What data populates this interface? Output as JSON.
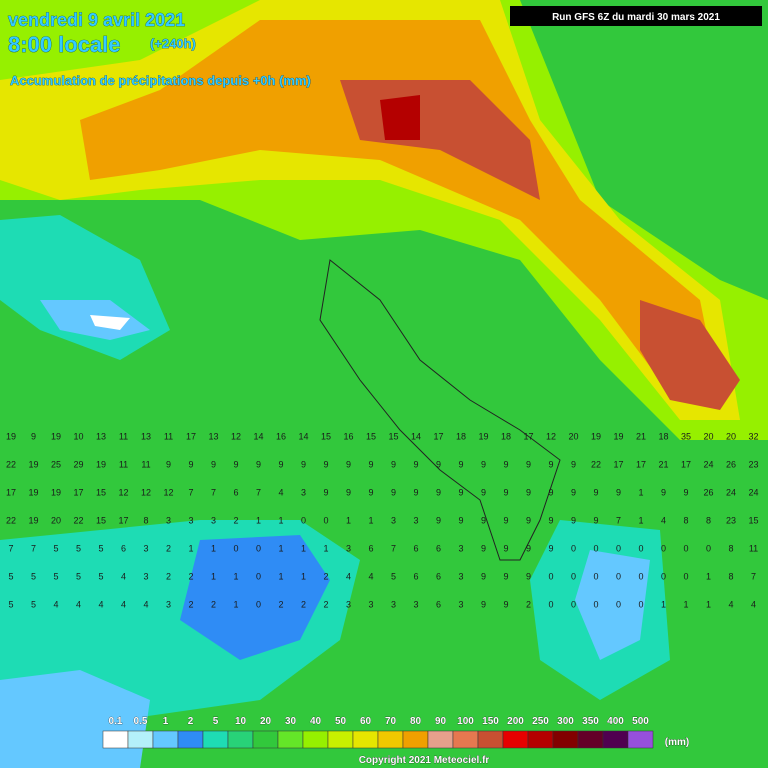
{
  "header": {
    "date": "vendredi 9 avril 2021",
    "time": "8:00 locale",
    "lead": "(+240h)",
    "subtitle": "Accumulation de précipitations depuis +0h (mm)",
    "run": "Run GFS 6Z du mardi 30 mars 2021"
  },
  "grid_values": [
    [
      19,
      9,
      19,
      10,
      13,
      11,
      13,
      11,
      17,
      13,
      12,
      14,
      16,
      14,
      15,
      16,
      15,
      15,
      14,
      17,
      18,
      19,
      18,
      17,
      12,
      20,
      19,
      19,
      21,
      18,
      35,
      20,
      20,
      32
    ],
    [
      22,
      19,
      25,
      29,
      19,
      11,
      11,
      9,
      9,
      9,
      9,
      9,
      9,
      9,
      9,
      9,
      9,
      9,
      9,
      9,
      9,
      9,
      9,
      9,
      9,
      9,
      22,
      17,
      17,
      21,
      17,
      24,
      26,
      23
    ],
    [
      17,
      19,
      19,
      17,
      15,
      12,
      12,
      12,
      7,
      7,
      6,
      7,
      4,
      3,
      9,
      9,
      9,
      9,
      9,
      9,
      9,
      9,
      9,
      9,
      9,
      9,
      9,
      9,
      1,
      9,
      9,
      26,
      24,
      24
    ],
    [
      22,
      19,
      20,
      22,
      15,
      17,
      8,
      3,
      3,
      3,
      2,
      1,
      1,
      0,
      0,
      1,
      1,
      3,
      3,
      9,
      9,
      9,
      9,
      9,
      9,
      9,
      9,
      7,
      1,
      4,
      8,
      8,
      23,
      15
    ],
    [
      7,
      7,
      5,
      5,
      5,
      6,
      3,
      2,
      1,
      1,
      0,
      0,
      1,
      1,
      1,
      3,
      6,
      7,
      6,
      6,
      3,
      9,
      9,
      9,
      9,
      0,
      0,
      0,
      0,
      0,
      0,
      0,
      8,
      11
    ],
    [
      5,
      5,
      5,
      5,
      5,
      4,
      3,
      2,
      2,
      1,
      1,
      0,
      1,
      1,
      2,
      4,
      4,
      5,
      6,
      6,
      3,
      9,
      9,
      9,
      0,
      0,
      0,
      0,
      0,
      0,
      0,
      1,
      8,
      7
    ],
    [
      5,
      5,
      4,
      4,
      4,
      4,
      4,
      3,
      2,
      2,
      1,
      0,
      2,
      2,
      2,
      3,
      3,
      3,
      3,
      6,
      3,
      9,
      9,
      2,
      0,
      0,
      0,
      0,
      0,
      1,
      1,
      1,
      4,
      4
    ]
  ],
  "legend": {
    "unit": "(mm)",
    "scale": [
      {
        "value": 0.1,
        "color": "#ffffff"
      },
      {
        "value": 0.5,
        "color": "#b4f0fa"
      },
      {
        "value": 1,
        "color": "#64c8ff"
      },
      {
        "value": 2,
        "color": "#2f8cf5"
      },
      {
        "value": 5,
        "color": "#1edcb4"
      },
      {
        "value": 10,
        "color": "#28d278"
      },
      {
        "value": 20,
        "color": "#32c83c"
      },
      {
        "value": 30,
        "color": "#64e628"
      },
      {
        "value": 40,
        "color": "#96f000"
      },
      {
        "value": 50,
        "color": "#c8f000"
      },
      {
        "value": 60,
        "color": "#e6e600"
      },
      {
        "value": 70,
        "color": "#f0c800"
      },
      {
        "value": 80,
        "color": "#f0a000"
      },
      {
        "value": 90,
        "color": "#e6a08c"
      },
      {
        "value": 100,
        "color": "#e67850"
      },
      {
        "value": 150,
        "color": "#c85032"
      },
      {
        "value": 200,
        "color": "#e60000"
      },
      {
        "value": 250,
        "color": "#b40000"
      },
      {
        "value": 300,
        "color": "#820000"
      },
      {
        "value": 350,
        "color": "#640028"
      },
      {
        "value": 400,
        "color": "#500050"
      },
      {
        "value": 500,
        "color": "#9650dc"
      }
    ]
  },
  "footer": {
    "copyright": "Copyright 2021 Meteociel.fr"
  }
}
